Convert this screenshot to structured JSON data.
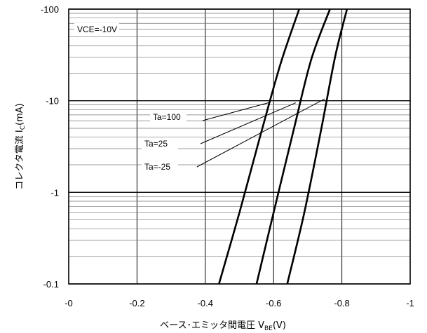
{
  "chart_data": {
    "type": "line",
    "xlabel_main": "ベース･エミッタ間電圧  V",
    "xlabel_sub": "BE",
    "xlabel_unit": "(V)",
    "ylabel_main": "コレクタ電流  I",
    "ylabel_sub": "C",
    "ylabel_unit": "(mA)",
    "xlim": [
      0,
      -1
    ],
    "ylim": [
      -0.1,
      -100
    ],
    "y_scale": "log",
    "grid": true,
    "x_ticks": [
      0,
      -0.2,
      -0.4,
      -0.6,
      -0.8,
      -1
    ],
    "x_tick_labels": [
      "-0",
      "-0.2",
      "-0.4",
      "-0.6",
      "-0.8",
      "-1"
    ],
    "y_ticks": [
      -0.1,
      -1,
      -10,
      -100
    ],
    "y_tick_labels": [
      "-0.1",
      "-1",
      "-10",
      "-100"
    ],
    "condition_label": "VCE=-10V",
    "series": [
      {
        "name": "Ta=100",
        "x": [
          -0.44,
          -0.5,
          -0.56,
          -0.62,
          -0.675
        ],
        "y": [
          -0.1,
          -0.6,
          -4,
          -25,
          -100
        ]
      },
      {
        "name": "Ta=25",
        "x": [
          -0.55,
          -0.6,
          -0.66,
          -0.71,
          -0.765
        ],
        "y": [
          -0.1,
          -0.6,
          -5,
          -28,
          -100
        ]
      },
      {
        "name": "Ta=-25",
        "x": [
          -0.64,
          -0.69,
          -0.74,
          -0.78,
          -0.815
        ],
        "y": [
          -0.1,
          -0.6,
          -5,
          -30,
          -100
        ]
      }
    ],
    "annotations": [
      {
        "text": "Ta=100",
        "point_x": -0.585,
        "point_y": -9.5
      },
      {
        "text": "Ta=25",
        "point_x": -0.665,
        "point_y": -9.5
      },
      {
        "text": "Ta=-25",
        "point_x": -0.75,
        "point_y": -10.5
      }
    ]
  }
}
